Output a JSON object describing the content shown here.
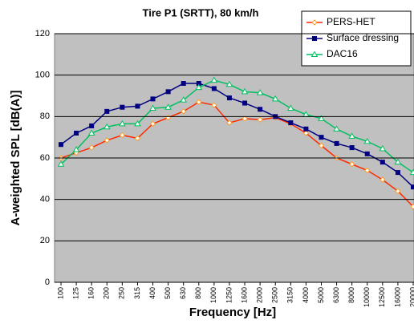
{
  "chart_data": {
    "type": "line",
    "title": "Tire P1 (SRTT), 80 km/h",
    "x_label": "Frequency [Hz]",
    "y_label": "A-weighted SPL [dB(A)]",
    "categories": [
      "100",
      "125",
      "160",
      "200",
      "250",
      "315",
      "400",
      "500",
      "630",
      "800",
      "1000",
      "1250",
      "1600",
      "2000",
      "2500",
      "3150",
      "4000",
      "5000",
      "6300",
      "8000",
      "10000",
      "12500",
      "16000",
      "20000"
    ],
    "series": [
      {
        "name": "PERS-HET",
        "color": "#ff2a00",
        "marker": "diamond",
        "marker_color": "#ff9a20",
        "values": [
          60,
          62.5,
          65,
          68.5,
          71,
          69.5,
          76.5,
          79.5,
          82.5,
          87,
          85.5,
          77,
          79,
          78.5,
          79.5,
          76.5,
          72,
          66,
          60,
          57,
          54,
          49.5,
          44,
          36.5
        ]
      },
      {
        "name": "Surface dressing",
        "color": "#000080",
        "marker": "square",
        "marker_color": "#000080",
        "values": [
          66.5,
          72,
          75.5,
          82.5,
          84.5,
          85,
          88.5,
          92,
          96,
          96,
          93.5,
          89,
          86.5,
          83.5,
          80,
          77,
          74,
          70,
          67,
          65,
          62,
          58,
          53,
          46
        ]
      },
      {
        "name": "DAC16",
        "color": "#00c060",
        "marker": "triangle",
        "marker_color": "#00c060",
        "values": [
          57,
          64,
          72,
          75,
          76.5,
          76.5,
          84,
          84.5,
          88,
          94,
          97.5,
          95.5,
          92,
          91.5,
          88.5,
          84,
          81,
          79,
          74,
          70.5,
          68,
          64.5,
          58,
          53
        ]
      }
    ],
    "ylim": [
      0,
      120
    ],
    "yticks": [
      0,
      20,
      40,
      60,
      80,
      100,
      120
    ],
    "grid": true,
    "legend": "top-right"
  }
}
